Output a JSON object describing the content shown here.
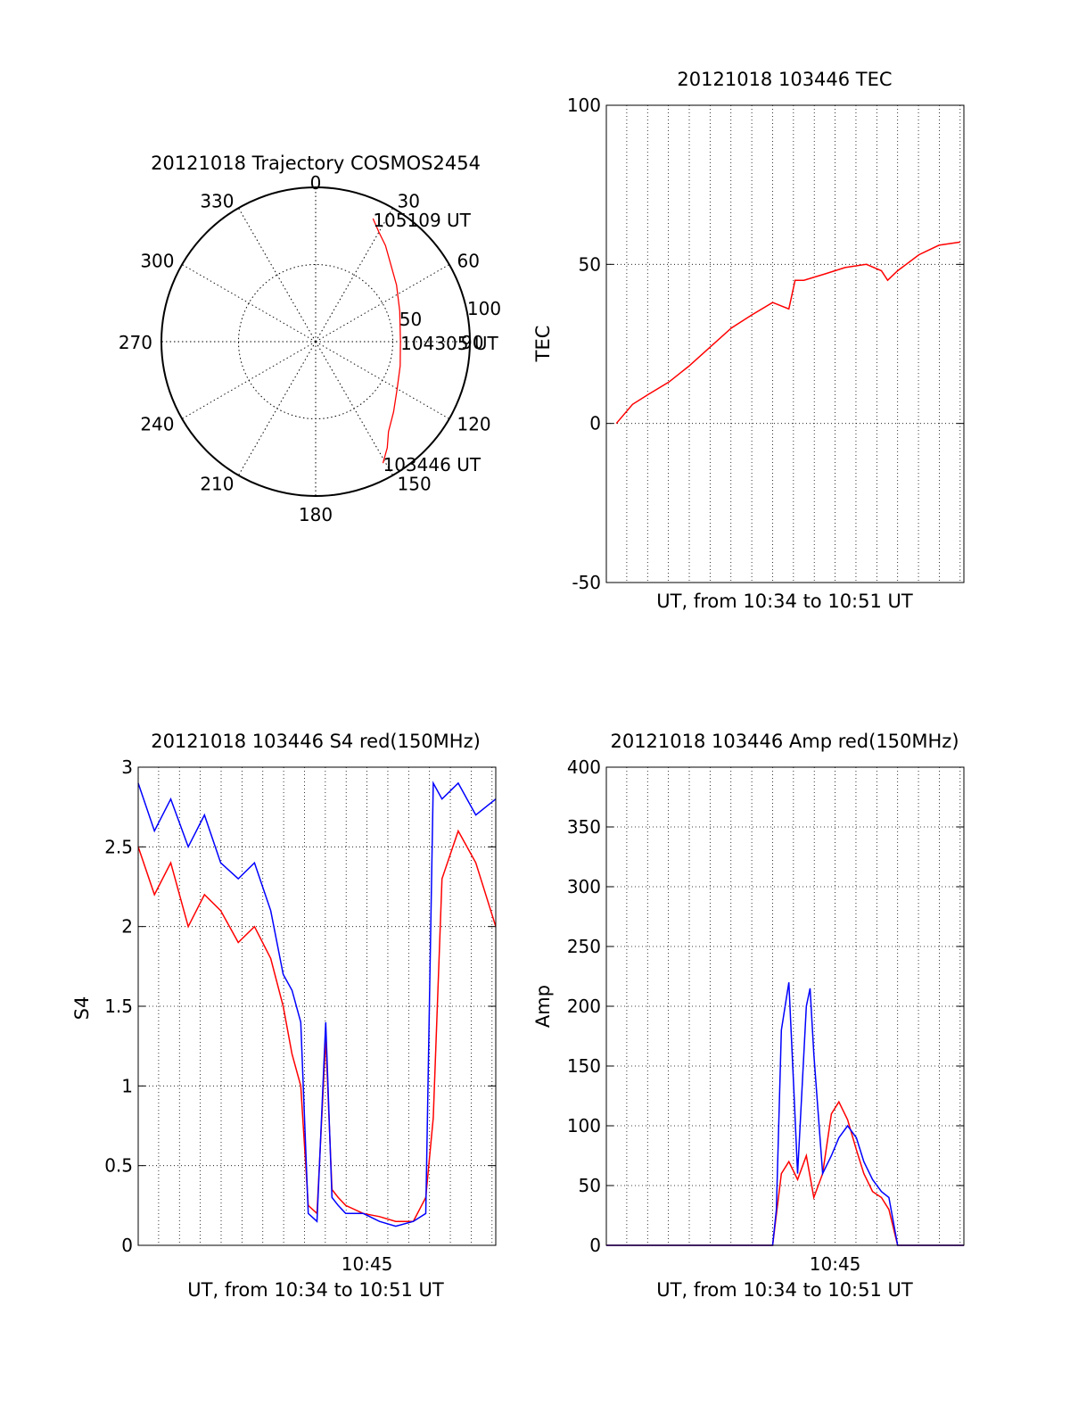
{
  "chart_data": [
    {
      "type": "polar",
      "title": "20121018 Trajectory COSMOS2454",
      "azimuth_labels": [
        "0",
        "30",
        "60",
        "90",
        "120",
        "150",
        "180",
        "210",
        "240",
        "270",
        "300",
        "330"
      ],
      "radial_ticks": [
        {
          "radius": 50,
          "label": "50"
        },
        {
          "radius": 100,
          "label": "100"
        }
      ],
      "radius_max": 100,
      "line_color": "#ff0000",
      "trajectory": {
        "azimuth_deg": [
          25,
          30,
          36,
          44,
          55,
          70,
          90,
          106,
          120,
          132,
          141,
          146,
          151
        ],
        "radius": [
          88,
          82,
          77,
          70,
          64,
          58,
          55,
          57,
          61,
          68,
          75,
          83,
          90
        ]
      },
      "annotations": [
        {
          "text": "105109 UT",
          "azimuth_deg": 25,
          "radius": 88
        },
        {
          "text": "104305 UT",
          "azimuth_deg": 90,
          "radius": 55
        },
        {
          "text": "103446 UT",
          "azimuth_deg": 151,
          "radius": 90
        }
      ]
    },
    {
      "type": "line",
      "title": "20121018 103446 TEC",
      "xlabel": "UT, from 10:34 to 10:51 UT",
      "ylabel": "TEC",
      "xlim": [
        10.567,
        10.853
      ],
      "ylim": [
        -50,
        100
      ],
      "yticks": [
        "-50",
        "0",
        "50",
        "100"
      ],
      "grid": true,
      "series": [
        {
          "color": "#ff0000",
          "x": [
            10.575,
            10.588,
            10.6,
            10.617,
            10.633,
            10.65,
            10.667,
            10.683,
            10.7,
            10.713,
            10.718,
            10.725,
            10.742,
            10.758,
            10.775,
            10.787,
            10.792,
            10.8,
            10.817,
            10.833,
            10.85
          ],
          "y": [
            0,
            6,
            9,
            13,
            18,
            24,
            30,
            34,
            38,
            36,
            45,
            45,
            47,
            49,
            50,
            48,
            45,
            48,
            53,
            56,
            57
          ]
        }
      ]
    },
    {
      "type": "line",
      "title": "20121018 103446 S4 red(150MHz)",
      "xlabel": "UT, from 10:34 to 10:51 UT",
      "ylabel": "S4",
      "xlim": [
        10.567,
        10.853
      ],
      "ylim": [
        0,
        3
      ],
      "yticks": [
        "0",
        "0.5",
        "1",
        "1.5",
        "2",
        "2.5",
        "3"
      ],
      "xticks": [
        {
          "value": 10.75,
          "label": "10:45"
        }
      ],
      "grid": true,
      "series": [
        {
          "color": "#ff0000",
          "x": [
            10.567,
            10.58,
            10.593,
            10.607,
            10.62,
            10.633,
            10.647,
            10.66,
            10.673,
            10.683,
            10.69,
            10.697,
            10.703,
            10.71,
            10.717,
            10.722,
            10.727,
            10.733,
            10.747,
            10.76,
            10.773,
            10.787,
            10.797,
            10.803,
            10.81,
            10.823,
            10.837,
            10.853
          ],
          "y": [
            2.5,
            2.2,
            2.4,
            2.0,
            2.2,
            2.1,
            1.9,
            2.0,
            1.8,
            1.5,
            1.2,
            1.0,
            0.25,
            0.2,
            1.3,
            0.35,
            0.3,
            0.25,
            0.2,
            0.18,
            0.15,
            0.15,
            0.3,
            0.8,
            2.3,
            2.6,
            2.4,
            2.0
          ]
        },
        {
          "color": "#0000ff",
          "x": [
            10.567,
            10.58,
            10.593,
            10.607,
            10.62,
            10.633,
            10.647,
            10.66,
            10.673,
            10.683,
            10.69,
            10.697,
            10.703,
            10.71,
            10.717,
            10.722,
            10.727,
            10.733,
            10.747,
            10.76,
            10.773,
            10.787,
            10.797,
            10.803,
            10.81,
            10.823,
            10.837,
            10.853
          ],
          "y": [
            2.9,
            2.6,
            2.8,
            2.5,
            2.7,
            2.4,
            2.3,
            2.4,
            2.1,
            1.7,
            1.6,
            1.4,
            0.2,
            0.15,
            1.4,
            0.3,
            0.25,
            0.2,
            0.2,
            0.15,
            0.12,
            0.15,
            0.2,
            2.9,
            2.8,
            2.9,
            2.7,
            2.8
          ]
        }
      ]
    },
    {
      "type": "line",
      "title": "20121018 103446 Amp red(150MHz)",
      "xlabel": "UT, from 10:34 to 10:51 UT",
      "ylabel": "Amp",
      "xlim": [
        10.567,
        10.853
      ],
      "ylim": [
        0,
        400
      ],
      "yticks": [
        "0",
        "50",
        "100",
        "150",
        "200",
        "250",
        "300",
        "350",
        "400"
      ],
      "xticks": [
        {
          "value": 10.75,
          "label": "10:45"
        }
      ],
      "grid": true,
      "series": [
        {
          "color": "#ff0000",
          "x": [
            10.567,
            10.7,
            10.707,
            10.713,
            10.72,
            10.727,
            10.733,
            10.74,
            10.747,
            10.753,
            10.76,
            10.767,
            10.773,
            10.78,
            10.787,
            10.793,
            10.8,
            10.853
          ],
          "y": [
            0,
            0,
            60,
            70,
            55,
            75,
            40,
            60,
            110,
            120,
            105,
            80,
            60,
            45,
            40,
            30,
            0,
            0
          ]
        },
        {
          "color": "#0000ff",
          "x": [
            10.567,
            10.7,
            10.703,
            10.707,
            10.713,
            10.717,
            10.72,
            10.727,
            10.73,
            10.733,
            10.74,
            10.747,
            10.753,
            10.76,
            10.767,
            10.773,
            10.78,
            10.787,
            10.793,
            10.8,
            10.853
          ],
          "y": [
            0,
            0,
            30,
            180,
            220,
            130,
            60,
            200,
            215,
            160,
            60,
            75,
            90,
            100,
            90,
            70,
            55,
            45,
            40,
            0,
            0
          ]
        }
      ]
    }
  ]
}
